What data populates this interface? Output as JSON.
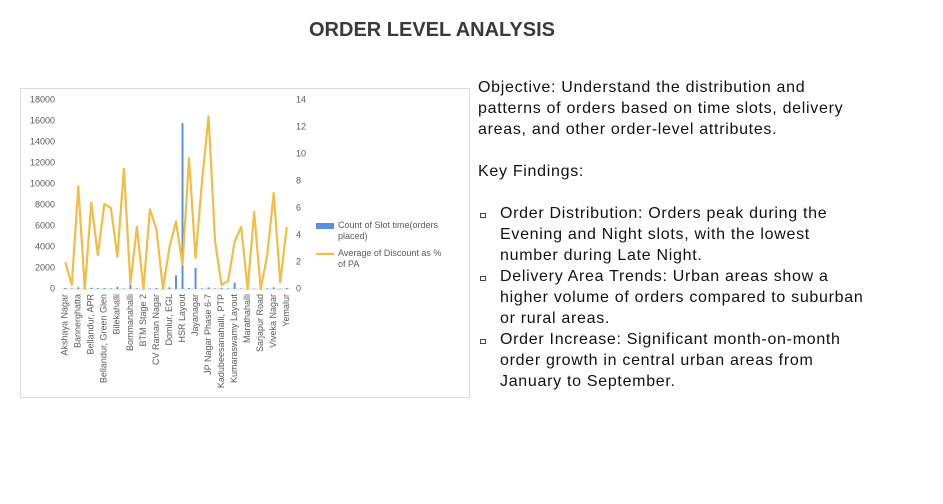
{
  "title": "ORDER LEVEL ANALYSIS",
  "objective": "Objective: Understand the distribution and patterns of orders based on time slots, delivery areas, and other order-level attributes.",
  "key_findings_heading": "Key Findings:",
  "findings": [
    "Order Distribution: Orders peak during the Evening and Night slots, with the lowest number during Late Night.",
    "Delivery Area Trends: Urban areas show a higher volume of orders compared to suburban or rural areas.",
    "Order Increase: Significant month-on-month order growth in central urban areas from January to September."
  ],
  "chart_data": {
    "type": "bar_line",
    "categories": [
      "Akshaya Nagar",
      null,
      "Bannerghatta",
      null,
      "Bellandur, APR",
      null,
      "Bellandur, Green Glen",
      null,
      "Bilekahalli",
      null,
      "Bommanahalli",
      null,
      "BTM Stage 2",
      null,
      "CV Raman Nagar",
      null,
      "Domlur, EGL",
      null,
      "HSR Layout",
      null,
      "Jayanagar",
      null,
      "JP Nagar Phase 6-7",
      null,
      "Kadubeesanahalli, PTP",
      null,
      "Kumaraswamy Layout",
      null,
      "Marathahalli",
      null,
      "Sarjapur Road",
      null,
      "Viveka Nagar",
      null,
      "Yemalur"
    ],
    "series": [
      {
        "name": "Count of Slot time(orders placed)",
        "color": "#5b8fd6",
        "values": [
          100,
          50,
          150,
          60,
          120,
          80,
          100,
          60,
          200,
          50,
          400,
          60,
          120,
          50,
          100,
          40,
          150,
          1300,
          15800,
          100,
          2000,
          60,
          150,
          50,
          120,
          60,
          600,
          50,
          150,
          40,
          120,
          60,
          150,
          50,
          100
        ]
      },
      {
        "name": "Average of Discount as % of PA",
        "color": "#f2bd47",
        "axis": "y2",
        "values": [
          2.0,
          0.3,
          7.6,
          0,
          6.4,
          2.5,
          6.3,
          6.0,
          2.4,
          8.9,
          0.4,
          4.6,
          0,
          5.9,
          4.4,
          0,
          3.1,
          5.0,
          1.8,
          9.7,
          2.3,
          8.0,
          12.8,
          3.5,
          0.3,
          0.6,
          3.5,
          4.6,
          0,
          5.7,
          0,
          2.5,
          7.1,
          0.5,
          4.6
        ]
      }
    ],
    "ylim": [
      0,
      18000
    ],
    "yticks": [
      0,
      2000,
      4000,
      6000,
      8000,
      10000,
      12000,
      14000,
      16000,
      18000
    ],
    "y2lim": [
      0,
      14
    ],
    "y2ticks": [
      0,
      2,
      4,
      6,
      8,
      10,
      12,
      14
    ],
    "legend": "right"
  }
}
